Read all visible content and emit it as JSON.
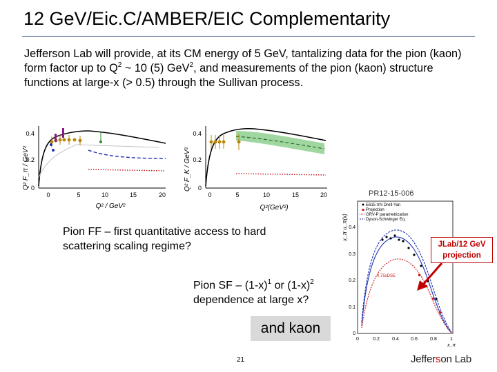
{
  "slide": {
    "title": "12 GeV/Eic.C/AMBER/EIC Complementarity",
    "intro": {
      "part1": "Jefferson Lab will provide, at its CM energy of 5 GeV, tantalizing data for the pion (kaon) form factor up to Q",
      "sup1": "2",
      "part2": " ~ 10 (5) GeV",
      "sup2": "2",
      "part3": ", and measurements of the pion (kaon) structure functions at large-x (> 0.5) through the Sullivan process."
    },
    "pion_ff_caption": "Pion FF – first quantitative access to hard scattering scaling regime?",
    "pion_sf_caption": {
      "part1": "Pion SF – (1-x)",
      "sup1": "1",
      "part2": " or (1-x)",
      "sup2": "2",
      "part3": "dependence at large x?"
    },
    "kaon_box": "and kaon",
    "page_number": "21",
    "callout": {
      "line1": "JLab/12 GeV",
      "line2": "projection"
    },
    "logo": {
      "left": "Jeffer",
      "mark": "s",
      "right": "on Lab"
    }
  },
  "plots": {
    "pion_ff": {
      "ylabel": "Q² F_π / GeV²",
      "xlabel": "Q² / GeV²",
      "x_ticks": [
        "0",
        "5",
        "10",
        "15",
        "20"
      ],
      "y_ticks": [
        "0.4",
        "0.2",
        "0"
      ]
    },
    "kaon_ff": {
      "ylabel": "Q² F_K / GeV²",
      "xlabel": "Q²(GeV²)",
      "x_ticks": [
        "0",
        "5",
        "10",
        "15",
        "20"
      ],
      "y_ticks": [
        "0.4",
        "0.2",
        "0"
      ]
    },
    "pion_sf": {
      "label": "PR12-15-006",
      "ylabel": "x_π u_π(x)",
      "xlabel": "x_π",
      "legend": [
        "E615 πN Drell-Yan",
        "Projection",
        "GRV-P parametrization",
        "Dyson-Schwinger Eq."
      ],
      "annotation": "0.75xDSE",
      "x_ticks": [
        "0",
        "0.2",
        "0.4",
        "0.6",
        "0.8",
        "1"
      ],
      "y_ticks": [
        "0.4",
        "0.3",
        "0.2",
        "0.1",
        "0"
      ]
    }
  },
  "colors": {
    "title_rule": "#1f3c73",
    "callout_red": "#c00000",
    "kaon_box_bg": "#d9d9d9",
    "sf_blue": "#1a2fb0",
    "sf_red": "#d01818",
    "band_green": "#8fd08f"
  }
}
